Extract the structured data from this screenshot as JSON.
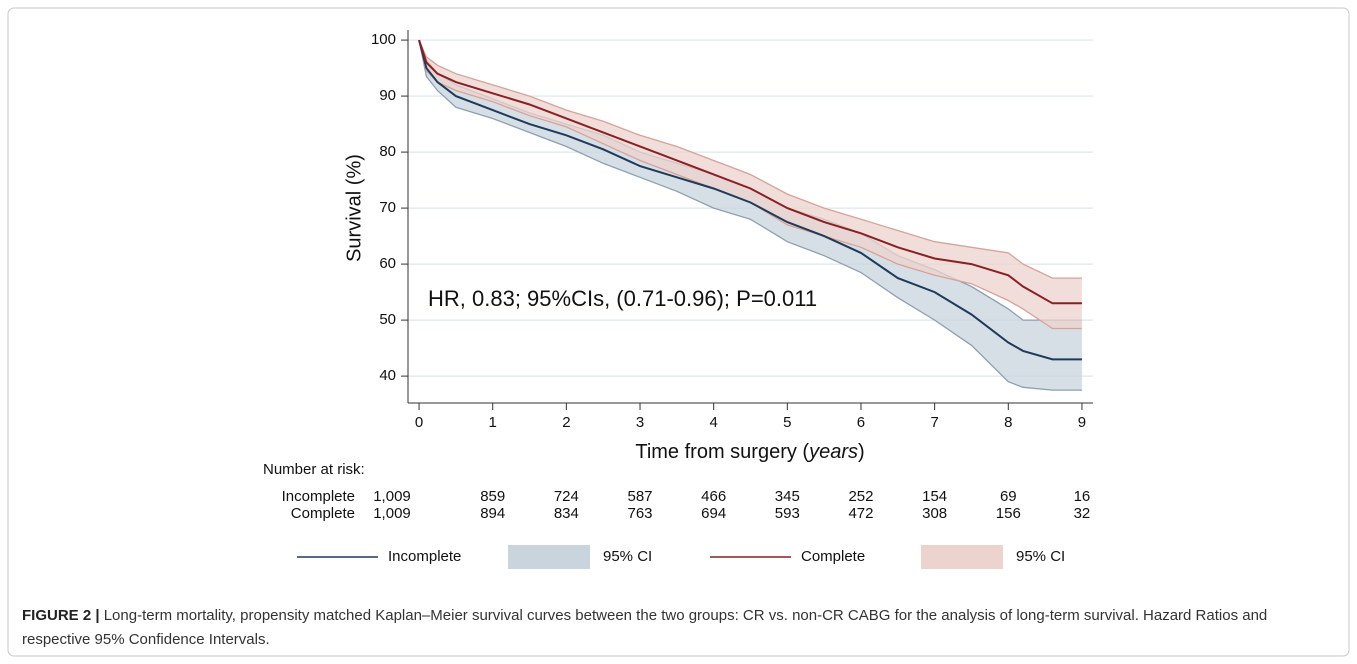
{
  "chart_data": {
    "type": "line",
    "ylabel": "Survival (%)",
    "xlabel": [
      "Time from surgery (",
      "years",
      ")"
    ],
    "annotation": "HR, 0.83; 95%CIs, (0.71-0.96); P=0.011",
    "x": [
      0,
      0.1,
      0.25,
      0.5,
      1,
      1.5,
      2,
      2.5,
      3,
      3.5,
      4,
      4.5,
      5,
      5.5,
      6,
      6.5,
      7,
      7.5,
      8,
      8.2,
      8.6,
      9
    ],
    "xlim": [
      -0.15,
      9.15
    ],
    "xticks": [
      0,
      1,
      2,
      3,
      4,
      5,
      6,
      7,
      8,
      9
    ],
    "ylim": [
      35.2,
      101.8
    ],
    "yticks": [
      40,
      50,
      60,
      70,
      80,
      90,
      100
    ],
    "grid": true,
    "series": [
      {
        "name": "Incomplete",
        "color": "#1f3a5a",
        "ci_label": "95% CI",
        "ci_color": "#cad4dd",
        "ci_line": "#8d9fb1",
        "values": [
          100,
          95,
          92.5,
          90,
          87.5,
          85,
          83,
          80.5,
          77.5,
          75.5,
          73.5,
          71,
          67.5,
          65,
          62,
          57.5,
          55,
          51,
          46,
          44.5,
          43,
          43
        ],
        "ci_lower": [
          100,
          93.5,
          91,
          88,
          86,
          83.5,
          81,
          78,
          75.5,
          73,
          70,
          68,
          64,
          61.5,
          58.5,
          54,
          50,
          45.5,
          39,
          38,
          37.5,
          37.5
        ],
        "ci_upper": [
          100,
          96.5,
          94,
          92,
          89.5,
          87,
          85,
          83,
          80,
          78,
          76,
          73.5,
          70,
          68,
          65.5,
          61.5,
          59,
          56,
          52,
          50,
          50,
          50
        ]
      },
      {
        "name": "Complete",
        "color": "#8b1f24",
        "ci_label": "95% CI",
        "ci_color": "#ecd3cd",
        "ci_line": "#d7a298",
        "values": [
          100,
          96,
          94,
          92.5,
          90.5,
          88.5,
          86,
          83.5,
          81,
          78.5,
          76,
          73.5,
          70,
          67.5,
          65.5,
          63,
          61,
          60,
          58,
          56,
          53,
          53
        ],
        "ci_lower": [
          100,
          94.5,
          92.5,
          91,
          89,
          86.5,
          84.5,
          81.5,
          78.5,
          76,
          73.5,
          71,
          67,
          65,
          63,
          60,
          58,
          56.5,
          53.5,
          52,
          48.5,
          48.5
        ],
        "ci_upper": [
          100,
          97,
          95.5,
          94,
          92,
          90,
          87.5,
          85.5,
          83,
          81,
          78.5,
          76,
          72.5,
          70,
          68,
          66,
          64,
          63,
          62,
          60,
          57.5,
          57.5
        ]
      }
    ],
    "risk_table": {
      "title": "Number at risk:",
      "rows": [
        {
          "name": "Incomplete",
          "values": [
            1009,
            859,
            724,
            587,
            466,
            345,
            252,
            154,
            69,
            16
          ],
          "value_labels": [
            "1,009",
            "859",
            "724",
            "587",
            "466",
            "345",
            "252",
            "154",
            "69",
            "16"
          ]
        },
        {
          "name": "Complete",
          "values": [
            1009,
            894,
            834,
            763,
            694,
            593,
            472,
            308,
            156,
            32
          ],
          "value_labels": [
            "1,009",
            "894",
            "834",
            "763",
            "694",
            "593",
            "472",
            "308",
            "156",
            "32"
          ]
        }
      ]
    },
    "caption": {
      "label": "FIGURE 2 |",
      "text": "Long-term mortality, propensity matched Kaplan–Meier survival curves between the two groups: CR vs. non-CR CABG for the analysis of long-term survival. Hazard Ratios and respective 95% Confidence Intervals."
    }
  }
}
